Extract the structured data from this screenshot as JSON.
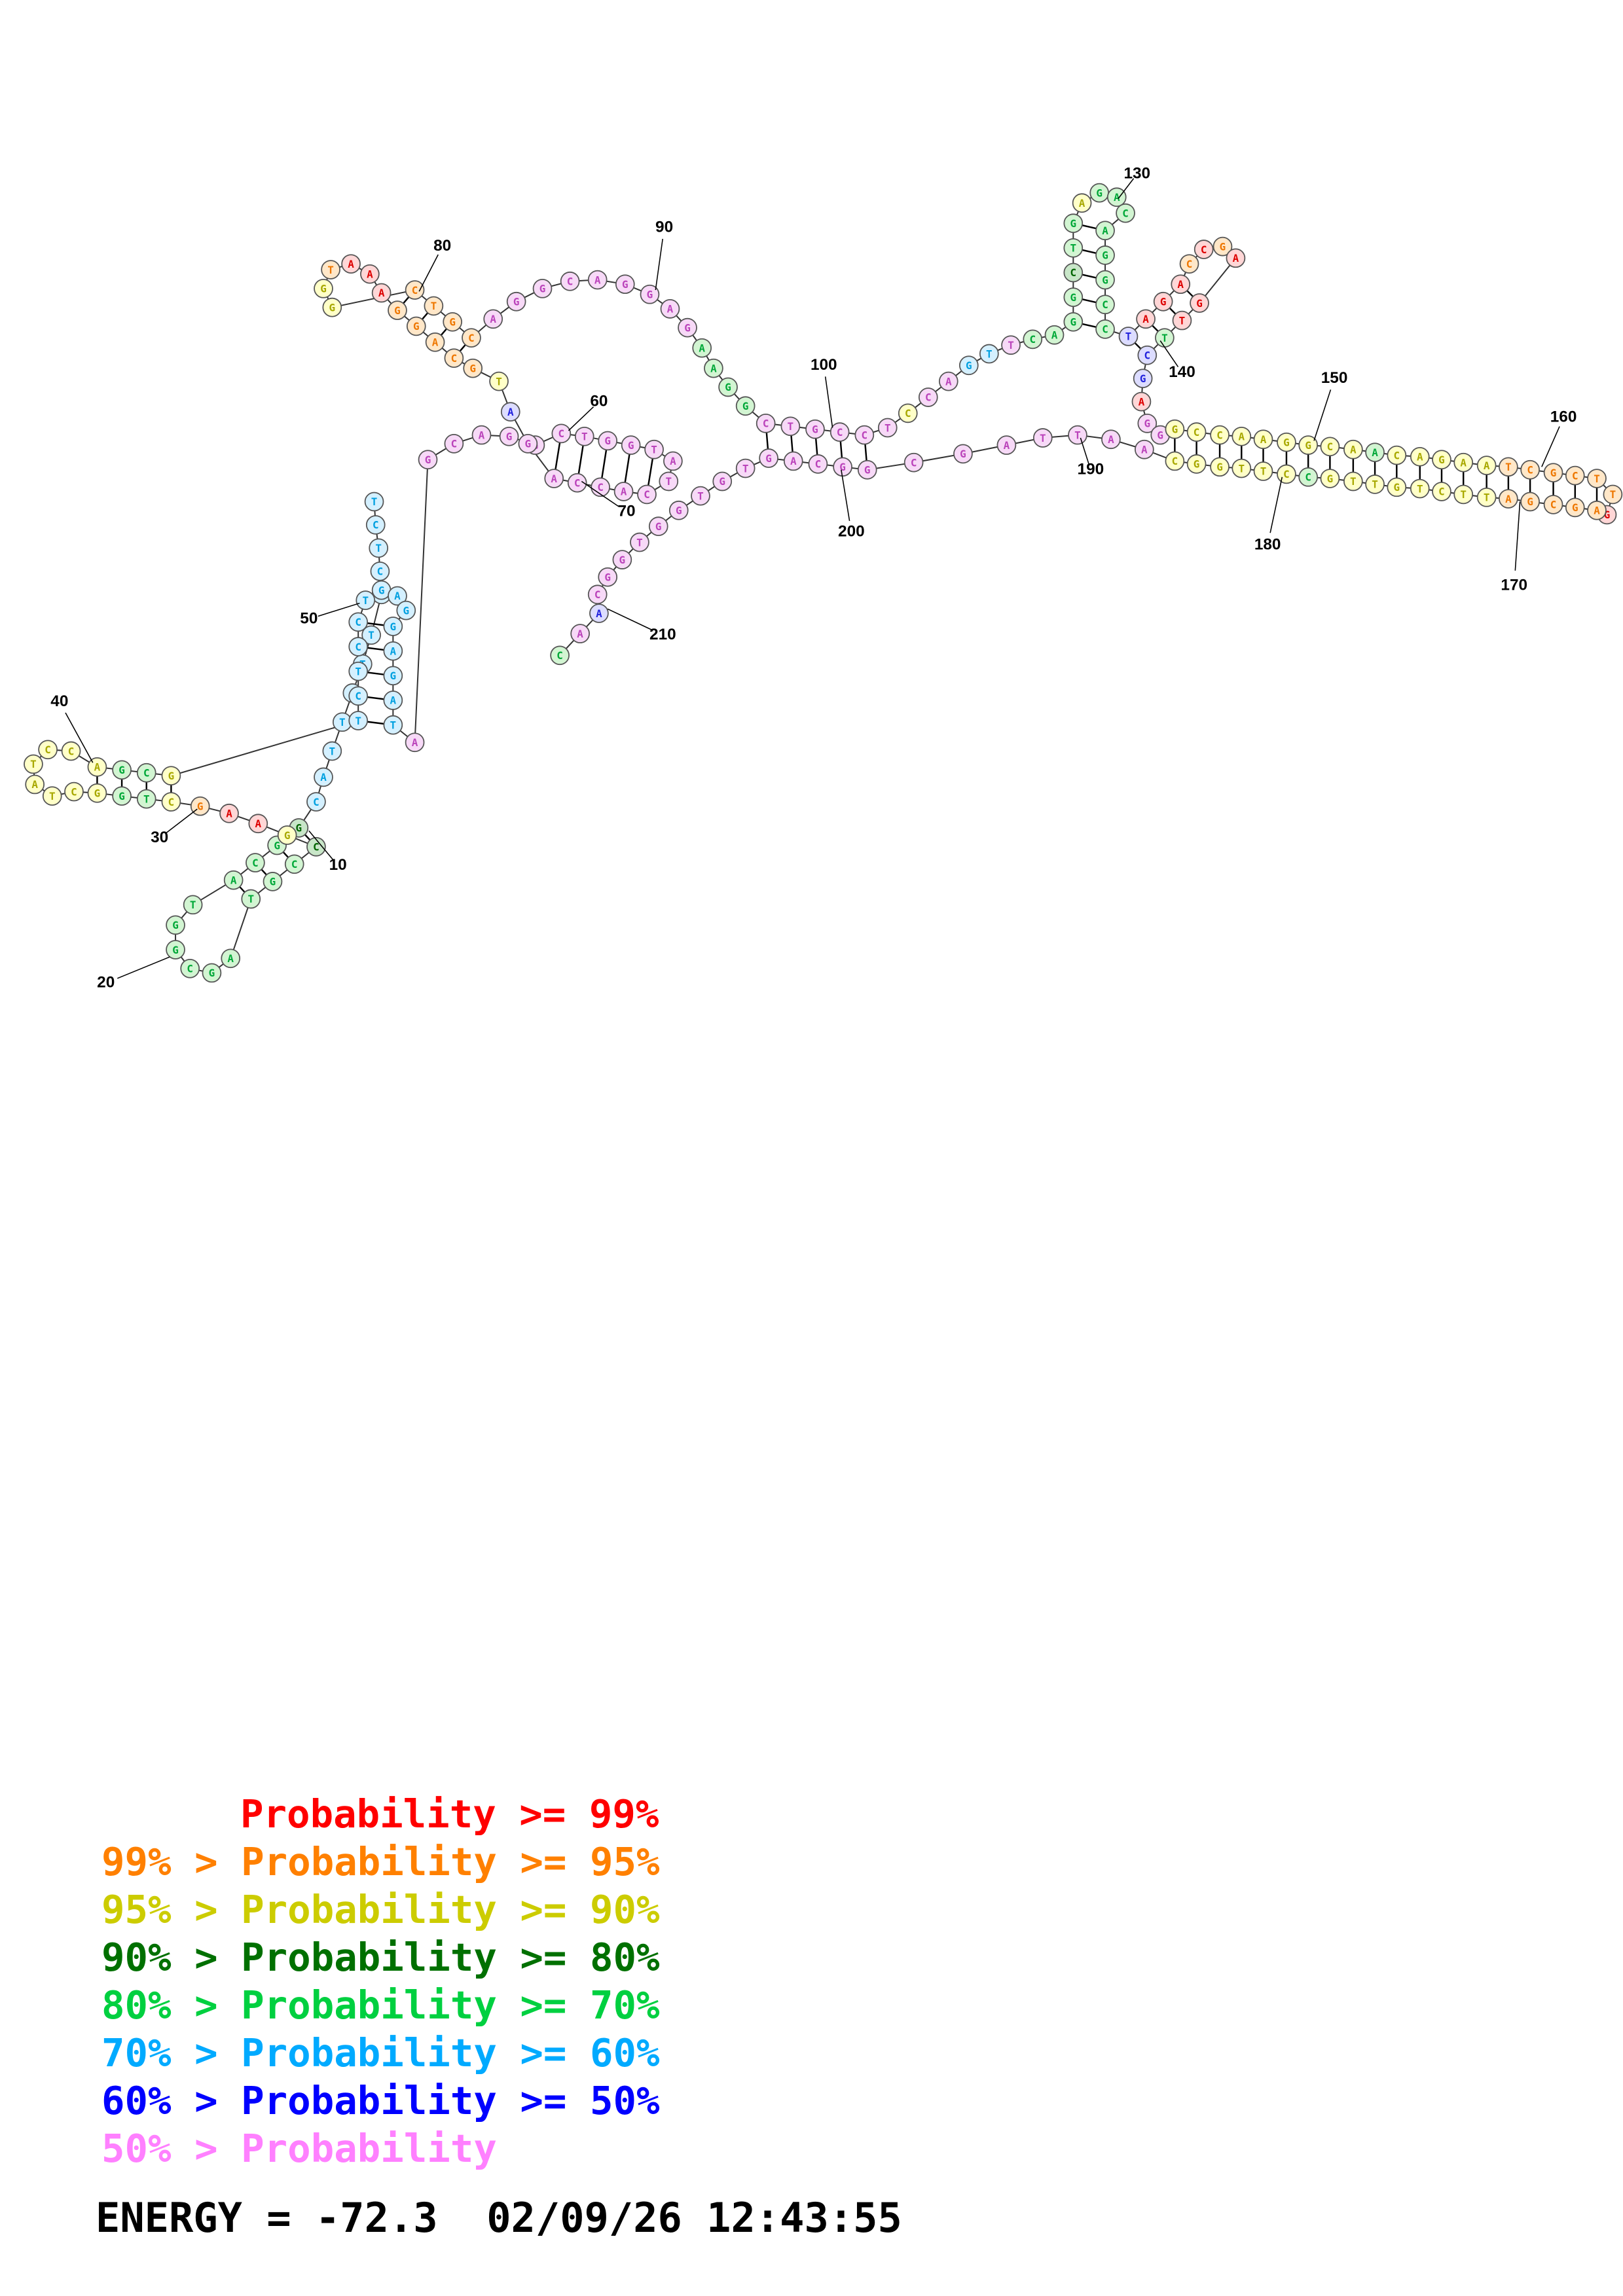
{
  "plot": {
    "description": "Nucleic-acid secondary structure drawing, bases colored by pairing probability",
    "length": 217,
    "sequence": "TCTCATTCTTACGGCATGGCGATGCCGAAGCTGGCTATCCAGCGTCTCCTGAGGAGATAGCAGGCTGGTATCACCAGATGCAGGAAATGGCTGCAGGCAGGAGAAGGCTGCCTCCAGTTCAGGCTGAGACAGGCCTAGACCGAGTTCGAGGGCCAAGGCAACAGAATCGCTTGAGCGATTCTGTTGCCTTGGCAATTAGCGGCAGTGTGGTGGCAAC",
    "position_labels": [
      "10",
      "20",
      "30",
      "40",
      "50",
      "60",
      "70",
      "80",
      "90",
      "100",
      "130",
      "140",
      "150",
      "160",
      "170",
      "180",
      "190",
      "200",
      "210"
    ],
    "color_classes": {
      "r": {
        "meaning": "Probability >= 99%",
        "letter": "#dd0000",
        "fill": "#ffd6d6"
      },
      "o": {
        "meaning": "99% > Probability >= 95%",
        "letter": "#ee7700",
        "fill": "#ffe7c8"
      },
      "y": {
        "meaning": "95% > Probability >= 90%",
        "letter": "#a8a800",
        "fill": "#ffffc8"
      },
      "d": {
        "meaning": "90% > Probability >= 80%",
        "letter": "#006400",
        "fill": "#c8e6c8"
      },
      "g": {
        "meaning": "80% > Probability >= 70%",
        "letter": "#00a838",
        "fill": "#d2f5d2"
      },
      "s": {
        "meaning": "70% > Probability >= 60%",
        "letter": "#00a0e0",
        "fill": "#d4f0ff"
      },
      "b": {
        "meaning": "60% > Probability >= 50%",
        "letter": "#2222dd",
        "fill": "#dcdcff"
      },
      "p": {
        "meaning": "50% > Probability",
        "letter": "#bb44bb",
        "fill": "#f7d9f7"
      }
    },
    "color_segments": [
      {
        "from": 1,
        "to": 12,
        "cls": "s"
      },
      {
        "from": 13,
        "to": 13,
        "cls": "d"
      },
      {
        "from": 14,
        "to": 25,
        "cls": "g"
      },
      {
        "from": 26,
        "to": 26,
        "cls": "d"
      },
      {
        "from": 27,
        "to": 27,
        "cls": "y"
      },
      {
        "from": 28,
        "to": 29,
        "cls": "r"
      },
      {
        "from": 30,
        "to": 30,
        "cls": "o"
      },
      {
        "from": 31,
        "to": 31,
        "cls": "y"
      },
      {
        "from": 32,
        "to": 33,
        "cls": "g"
      },
      {
        "from": 34,
        "to": 41,
        "cls": "y"
      },
      {
        "from": 42,
        "to": 43,
        "cls": "g"
      },
      {
        "from": 44,
        "to": 44,
        "cls": "y"
      },
      {
        "from": 45,
        "to": 58,
        "cls": "s"
      },
      {
        "from": 59,
        "to": 77,
        "cls": "p"
      },
      {
        "from": 78,
        "to": 78,
        "cls": "b"
      },
      {
        "from": 79,
        "to": 79,
        "cls": "y"
      },
      {
        "from": 80,
        "to": 84,
        "cls": "o"
      },
      {
        "from": 85,
        "to": 87,
        "cls": "r"
      },
      {
        "from": 88,
        "to": 88,
        "cls": "o"
      },
      {
        "from": 89,
        "to": 90,
        "cls": "y"
      },
      {
        "from": 91,
        "to": 94,
        "cls": "o"
      },
      {
        "from": 95,
        "to": 103,
        "cls": "p"
      },
      {
        "from": 104,
        "to": 107,
        "cls": "g"
      },
      {
        "from": 108,
        "to": 113,
        "cls": "p"
      },
      {
        "from": 114,
        "to": 114,
        "cls": "y"
      },
      {
        "from": 115,
        "to": 116,
        "cls": "p"
      },
      {
        "from": 117,
        "to": 118,
        "cls": "s"
      },
      {
        "from": 119,
        "to": 119,
        "cls": "p"
      },
      {
        "from": 120,
        "to": 123,
        "cls": "g"
      },
      {
        "from": 124,
        "to": 124,
        "cls": "d"
      },
      {
        "from": 125,
        "to": 126,
        "cls": "g"
      },
      {
        "from": 127,
        "to": 127,
        "cls": "y"
      },
      {
        "from": 128,
        "to": 135,
        "cls": "g"
      },
      {
        "from": 136,
        "to": 136,
        "cls": "b"
      },
      {
        "from": 137,
        "to": 139,
        "cls": "r"
      },
      {
        "from": 140,
        "to": 140,
        "cls": "o"
      },
      {
        "from": 141,
        "to": 141,
        "cls": "r"
      },
      {
        "from": 142,
        "to": 142,
        "cls": "o"
      },
      {
        "from": 143,
        "to": 145,
        "cls": "r"
      },
      {
        "from": 146,
        "to": 146,
        "cls": "g"
      },
      {
        "from": 147,
        "to": 148,
        "cls": "b"
      },
      {
        "from": 149,
        "to": 149,
        "cls": "r"
      },
      {
        "from": 150,
        "to": 151,
        "cls": "p"
      },
      {
        "from": 152,
        "to": 160,
        "cls": "y"
      },
      {
        "from": 161,
        "to": 161,
        "cls": "g"
      },
      {
        "from": 162,
        "to": 166,
        "cls": "y"
      },
      {
        "from": 167,
        "to": 172,
        "cls": "o"
      },
      {
        "from": 173,
        "to": 173,
        "cls": "r"
      },
      {
        "from": 174,
        "to": 178,
        "cls": "o"
      },
      {
        "from": 179,
        "to": 186,
        "cls": "y"
      },
      {
        "from": 187,
        "to": 187,
        "cls": "g"
      },
      {
        "from": 188,
        "to": 193,
        "cls": "y"
      },
      {
        "from": 194,
        "to": 214,
        "cls": "p"
      },
      {
        "from": 215,
        "to": 215,
        "cls": "b"
      },
      {
        "from": 216,
        "to": 216,
        "cls": "p"
      },
      {
        "from": 217,
        "to": 217,
        "cls": "g"
      }
    ]
  },
  "legend": {
    "items": [
      {
        "text": "Probability >= 99%",
        "color": "#ff0000"
      },
      {
        "text": "99% > Probability >= 95%",
        "color": "#ff8000"
      },
      {
        "text": "95% > Probability >= 90%",
        "color": "#cccc00"
      },
      {
        "text": "90% > Probability >= 80%",
        "color": "#007000"
      },
      {
        "text": "80% > Probability >= 70%",
        "color": "#00d040"
      },
      {
        "text": "70% > Probability >= 60%",
        "color": "#00aaff"
      },
      {
        "text": "60% > Probability >= 50%",
        "color": "#0000ff"
      },
      {
        "text": "50% > Probability",
        "color": "#ff80ff"
      }
    ]
  },
  "footer": {
    "energy_text": "ENERGY = -72.3  02/09/26 12:43:55"
  }
}
